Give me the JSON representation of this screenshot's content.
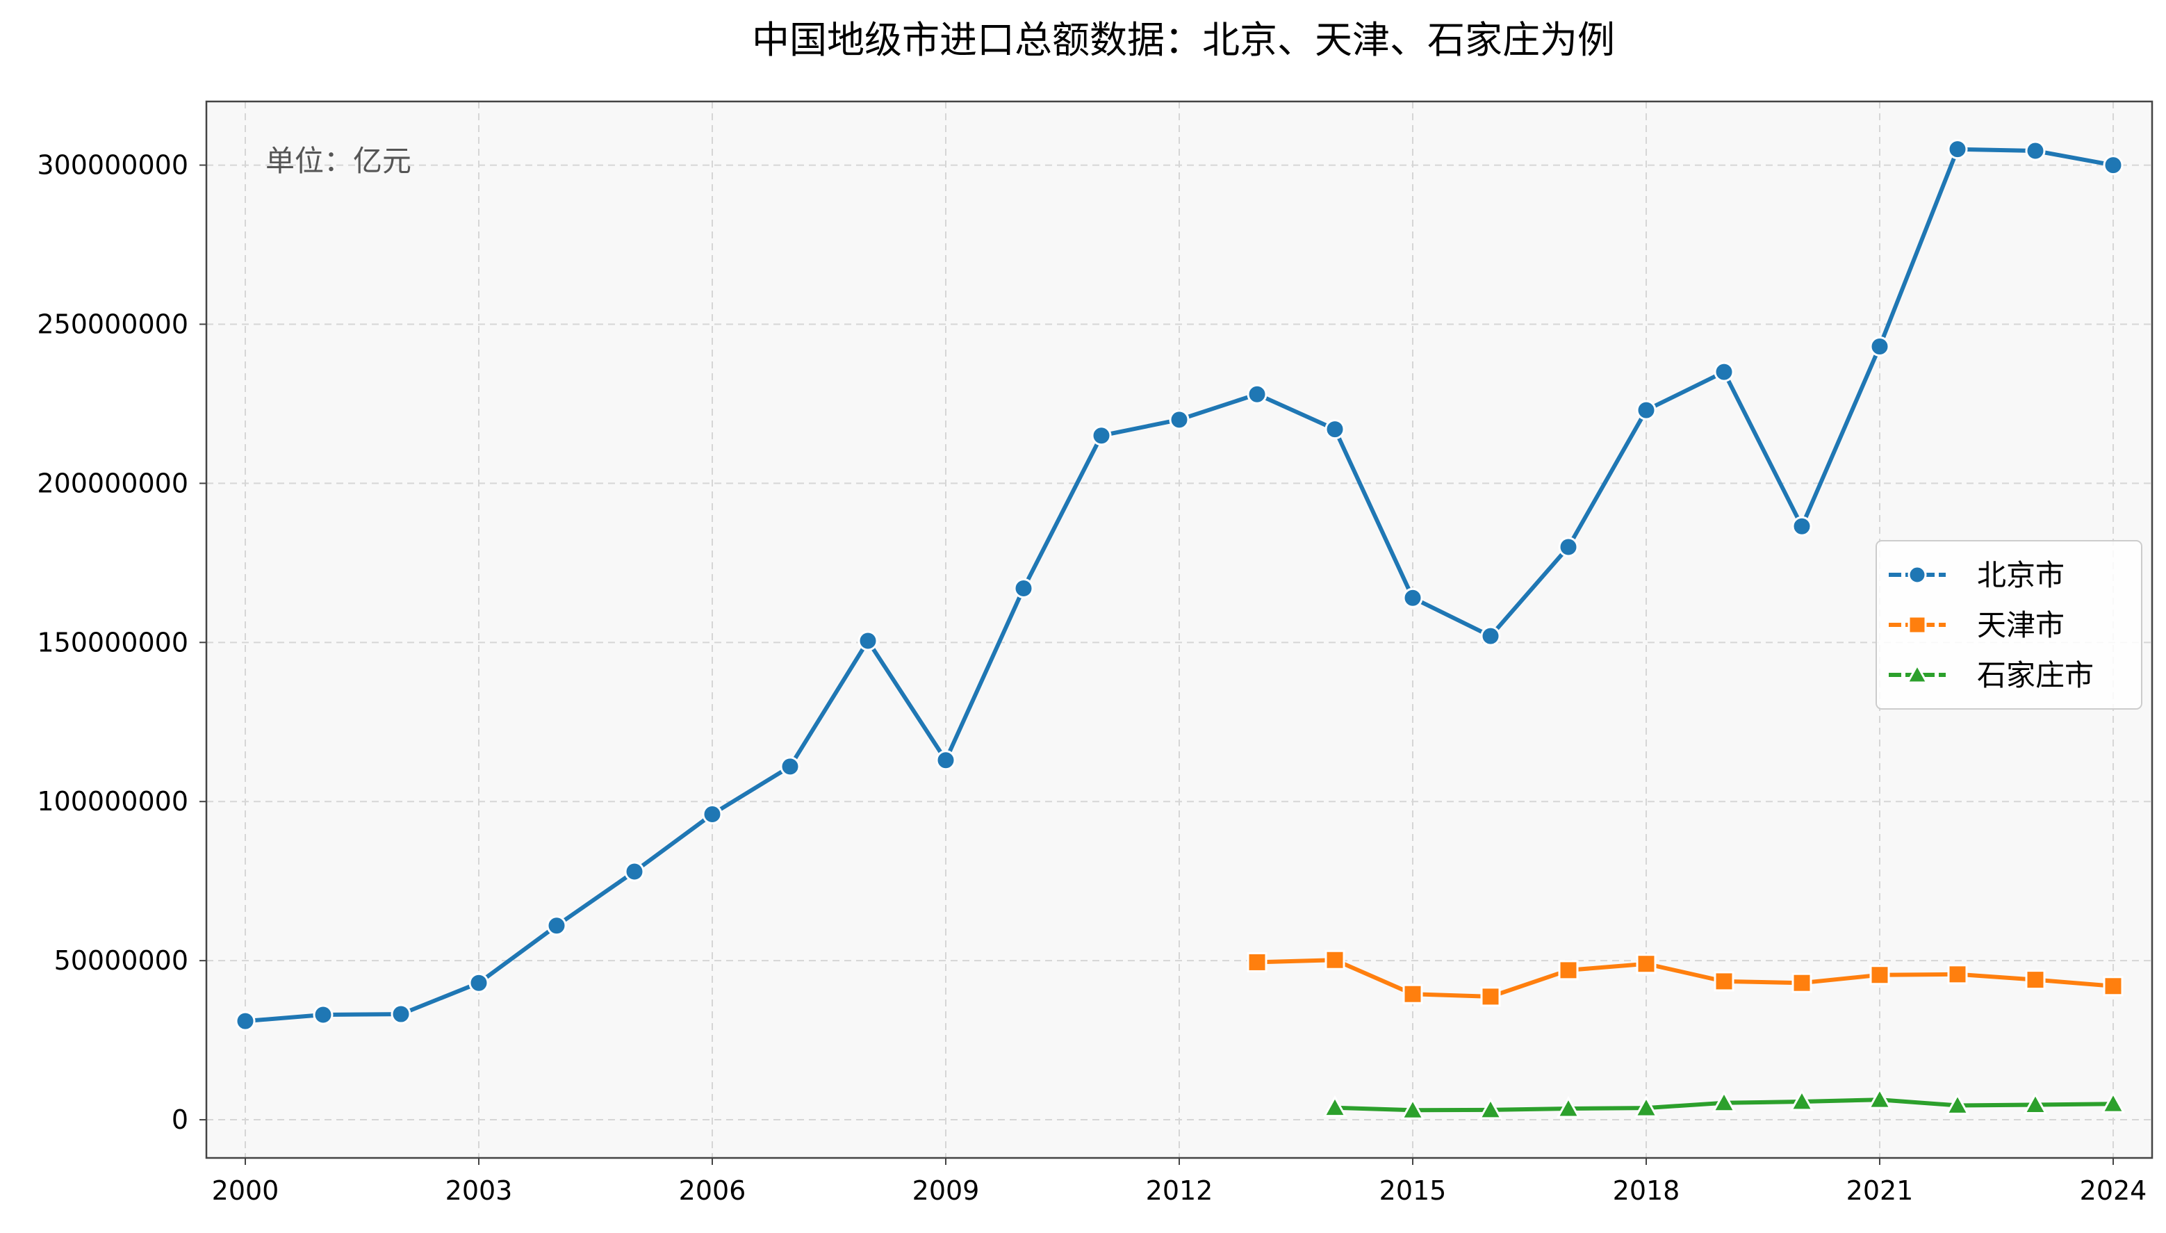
{
  "chart_data": {
    "type": "line",
    "title": "中国地级市进口总额数据：北京、天津、石家庄为例",
    "unit_note": "单位：亿元",
    "xlabel": "",
    "ylabel": "",
    "xlim": [
      1999.5,
      2024.5
    ],
    "ylim": [
      -12000000,
      320000000
    ],
    "x_ticks": [
      2000,
      2003,
      2006,
      2009,
      2012,
      2015,
      2018,
      2021,
      2024
    ],
    "x_tick_labels": [
      "2000",
      "2003",
      "2006",
      "2009",
      "2012",
      "2015",
      "2018",
      "2021",
      "2024"
    ],
    "y_ticks": [
      0,
      50000000,
      100000000,
      150000000,
      200000000,
      250000000,
      300000000
    ],
    "y_tick_labels": [
      "0",
      "50000000",
      "100000000",
      "150000000",
      "200000000",
      "250000000",
      "300000000"
    ],
    "grid": true,
    "legend_position": "center-right",
    "background": "#f8f8f8",
    "series": [
      {
        "name": "北京市",
        "color": "#1f77b4",
        "marker": "circle",
        "x": [
          2000,
          2001,
          2002,
          2003,
          2004,
          2005,
          2006,
          2007,
          2008,
          2009,
          2010,
          2011,
          2012,
          2013,
          2014,
          2015,
          2016,
          2017,
          2018,
          2019,
          2020,
          2021,
          2022,
          2023,
          2024
        ],
        "values": [
          31000000,
          33000000,
          33200000,
          43000000,
          61000000,
          78000000,
          96000000,
          111000000,
          150500000,
          113000000,
          167000000,
          215000000,
          220000000,
          228000000,
          217000000,
          164000000,
          152000000,
          180000000,
          223000000,
          235000000,
          186500000,
          243000000,
          305000000,
          304500000,
          300000000
        ]
      },
      {
        "name": "天津市",
        "color": "#ff7f0e",
        "marker": "square",
        "x": [
          2013,
          2014,
          2015,
          2016,
          2017,
          2018,
          2019,
          2020,
          2021,
          2022,
          2023,
          2024
        ],
        "values": [
          49500000,
          50200000,
          39500000,
          38700000,
          47000000,
          49000000,
          43500000,
          43000000,
          45500000,
          45700000,
          44000000,
          42000000
        ]
      },
      {
        "name": "石家庄市",
        "color": "#2ca02c",
        "marker": "triangle",
        "x": [
          2014,
          2015,
          2016,
          2017,
          2018,
          2019,
          2020,
          2021,
          2022,
          2023,
          2024
        ],
        "values": [
          3800000,
          3000000,
          3100000,
          3500000,
          3700000,
          5300000,
          5700000,
          6300000,
          4500000,
          4700000,
          5000000
        ]
      }
    ]
  }
}
